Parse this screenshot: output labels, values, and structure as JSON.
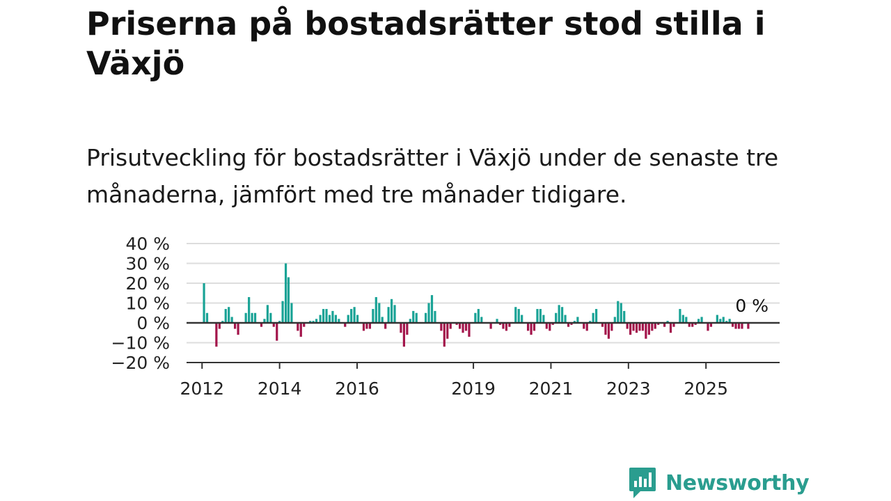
{
  "title": "Priserna på bostadsrätter stod stilla i Växjö",
  "subtitle": "Prisutveckling för bostadsrätter i Växjö under de senaste tre månaderna, jämfört med tre månader tidigare.",
  "brand": {
    "name": "Newsworthy",
    "color": "#2a9d8f"
  },
  "colors": {
    "positive": "#1aa396",
    "negative": "#a3154b",
    "grid": "#dddddd",
    "axis": "#333333"
  },
  "chart_data": {
    "type": "bar",
    "title": "",
    "xlabel": "",
    "ylabel": "",
    "ylim": [
      -20,
      40
    ],
    "y_ticks": [
      40,
      30,
      20,
      10,
      0,
      -10,
      -20
    ],
    "y_tick_labels": [
      "40 %",
      "30 %",
      "20 %",
      "10 %",
      "0 %",
      "−10 %",
      "−20 %"
    ],
    "x_ticks": [
      2012,
      2014,
      2016,
      2019,
      2021,
      2023,
      2025
    ],
    "x_tick_labels": [
      "2012",
      "2014",
      "2016",
      "2019",
      "2021",
      "2023",
      "2025"
    ],
    "x_range": [
      2011.6,
      2026.9
    ],
    "end_label": "0 %",
    "grid": true,
    "series": [
      {
        "values": [
          {
            "x": 2012.05,
            "y": 20
          },
          {
            "x": 2012.13,
            "y": 5
          },
          {
            "x": 2012.21,
            "y": 0
          },
          {
            "x": 2012.29,
            "y": 0
          },
          {
            "x": 2012.37,
            "y": -12
          },
          {
            "x": 2012.45,
            "y": -3
          },
          {
            "x": 2012.53,
            "y": 1
          },
          {
            "x": 2012.61,
            "y": 7
          },
          {
            "x": 2012.69,
            "y": 8
          },
          {
            "x": 2012.77,
            "y": 3
          },
          {
            "x": 2012.85,
            "y": -3
          },
          {
            "x": 2012.93,
            "y": -6
          },
          {
            "x": 2013.05,
            "y": 0
          },
          {
            "x": 2013.13,
            "y": 5
          },
          {
            "x": 2013.21,
            "y": 13
          },
          {
            "x": 2013.29,
            "y": 5
          },
          {
            "x": 2013.37,
            "y": 5
          },
          {
            "x": 2013.45,
            "y": 0
          },
          {
            "x": 2013.53,
            "y": -2
          },
          {
            "x": 2013.61,
            "y": 2
          },
          {
            "x": 2013.69,
            "y": 9
          },
          {
            "x": 2013.77,
            "y": 5
          },
          {
            "x": 2013.85,
            "y": -2
          },
          {
            "x": 2013.93,
            "y": -9
          },
          {
            "x": 2014.0,
            "y": 1
          },
          {
            "x": 2014.08,
            "y": 11
          },
          {
            "x": 2014.16,
            "y": 30
          },
          {
            "x": 2014.23,
            "y": 23
          },
          {
            "x": 2014.31,
            "y": 10
          },
          {
            "x": 2014.39,
            "y": 0
          },
          {
            "x": 2014.47,
            "y": -4
          },
          {
            "x": 2014.55,
            "y": -7
          },
          {
            "x": 2014.63,
            "y": -2
          },
          {
            "x": 2014.71,
            "y": 0
          },
          {
            "x": 2014.79,
            "y": 1
          },
          {
            "x": 2014.87,
            "y": 1
          },
          {
            "x": 2014.95,
            "y": 2
          },
          {
            "x": 2015.05,
            "y": 4
          },
          {
            "x": 2015.13,
            "y": 7
          },
          {
            "x": 2015.21,
            "y": 7
          },
          {
            "x": 2015.29,
            "y": 4
          },
          {
            "x": 2015.37,
            "y": 6
          },
          {
            "x": 2015.45,
            "y": 4
          },
          {
            "x": 2015.53,
            "y": 2
          },
          {
            "x": 2015.61,
            "y": 0
          },
          {
            "x": 2015.69,
            "y": -2
          },
          {
            "x": 2015.77,
            "y": 4
          },
          {
            "x": 2015.85,
            "y": 7
          },
          {
            "x": 2015.93,
            "y": 8
          },
          {
            "x": 2016.01,
            "y": 4
          },
          {
            "x": 2016.09,
            "y": 0
          },
          {
            "x": 2016.17,
            "y": -4
          },
          {
            "x": 2016.25,
            "y": -3
          },
          {
            "x": 2016.33,
            "y": -3
          },
          {
            "x": 2016.41,
            "y": 7
          },
          {
            "x": 2016.49,
            "y": 13
          },
          {
            "x": 2016.57,
            "y": 10
          },
          {
            "x": 2016.65,
            "y": 3
          },
          {
            "x": 2016.73,
            "y": -3
          },
          {
            "x": 2016.81,
            "y": 8
          },
          {
            "x": 2016.89,
            "y": 12
          },
          {
            "x": 2016.97,
            "y": 9
          },
          {
            "x": 2017.05,
            "y": 0
          },
          {
            "x": 2017.13,
            "y": -5
          },
          {
            "x": 2017.21,
            "y": -12
          },
          {
            "x": 2017.29,
            "y": -6
          },
          {
            "x": 2017.37,
            "y": 2
          },
          {
            "x": 2017.45,
            "y": 6
          },
          {
            "x": 2017.53,
            "y": 5
          },
          {
            "x": 2017.61,
            "y": 0
          },
          {
            "x": 2017.69,
            "y": 0
          },
          {
            "x": 2017.77,
            "y": 5
          },
          {
            "x": 2017.85,
            "y": 10
          },
          {
            "x": 2017.93,
            "y": 14
          },
          {
            "x": 2018.01,
            "y": 6
          },
          {
            "x": 2018.09,
            "y": 0
          },
          {
            "x": 2018.17,
            "y": -4
          },
          {
            "x": 2018.25,
            "y": -12
          },
          {
            "x": 2018.33,
            "y": -8
          },
          {
            "x": 2018.41,
            "y": -3
          },
          {
            "x": 2018.49,
            "y": 0
          },
          {
            "x": 2018.57,
            "y": -1
          },
          {
            "x": 2018.65,
            "y": -3
          },
          {
            "x": 2018.73,
            "y": -5
          },
          {
            "x": 2018.81,
            "y": -4
          },
          {
            "x": 2018.89,
            "y": -7
          },
          {
            "x": 2018.97,
            "y": 0
          },
          {
            "x": 2019.05,
            "y": 5
          },
          {
            "x": 2019.13,
            "y": 7
          },
          {
            "x": 2019.21,
            "y": 3
          },
          {
            "x": 2019.29,
            "y": 0
          },
          {
            "x": 2019.37,
            "y": 0
          },
          {
            "x": 2019.45,
            "y": -3
          },
          {
            "x": 2019.53,
            "y": 0
          },
          {
            "x": 2019.61,
            "y": 2
          },
          {
            "x": 2019.69,
            "y": -1
          },
          {
            "x": 2019.77,
            "y": -3
          },
          {
            "x": 2019.85,
            "y": -4
          },
          {
            "x": 2019.93,
            "y": -2
          },
          {
            "x": 2020.01,
            "y": 0
          },
          {
            "x": 2020.09,
            "y": 8
          },
          {
            "x": 2020.17,
            "y": 7
          },
          {
            "x": 2020.25,
            "y": 4
          },
          {
            "x": 2020.33,
            "y": 0
          },
          {
            "x": 2020.41,
            "y": -4
          },
          {
            "x": 2020.49,
            "y": -6
          },
          {
            "x": 2020.57,
            "y": -4
          },
          {
            "x": 2020.65,
            "y": 7
          },
          {
            "x": 2020.73,
            "y": 7
          },
          {
            "x": 2020.81,
            "y": 4
          },
          {
            "x": 2020.89,
            "y": -3
          },
          {
            "x": 2020.97,
            "y": -4
          },
          {
            "x": 2021.05,
            "y": -1
          },
          {
            "x": 2021.13,
            "y": 5
          },
          {
            "x": 2021.21,
            "y": 9
          },
          {
            "x": 2021.29,
            "y": 8
          },
          {
            "x": 2021.37,
            "y": 4
          },
          {
            "x": 2021.45,
            "y": -2
          },
          {
            "x": 2021.53,
            "y": -1
          },
          {
            "x": 2021.61,
            "y": 1
          },
          {
            "x": 2021.69,
            "y": 3
          },
          {
            "x": 2021.77,
            "y": 0
          },
          {
            "x": 2021.85,
            "y": -3
          },
          {
            "x": 2021.93,
            "y": -4
          },
          {
            "x": 2022.01,
            "y": 1
          },
          {
            "x": 2022.09,
            "y": 5
          },
          {
            "x": 2022.17,
            "y": 7
          },
          {
            "x": 2022.25,
            "y": 0
          },
          {
            "x": 2022.33,
            "y": -2
          },
          {
            "x": 2022.41,
            "y": -6
          },
          {
            "x": 2022.49,
            "y": -8
          },
          {
            "x": 2022.57,
            "y": -4
          },
          {
            "x": 2022.65,
            "y": 3
          },
          {
            "x": 2022.73,
            "y": 11
          },
          {
            "x": 2022.81,
            "y": 10
          },
          {
            "x": 2022.89,
            "y": 6
          },
          {
            "x": 2022.97,
            "y": -3
          },
          {
            "x": 2023.05,
            "y": -6
          },
          {
            "x": 2023.13,
            "y": -4
          },
          {
            "x": 2023.21,
            "y": -5
          },
          {
            "x": 2023.29,
            "y": -4
          },
          {
            "x": 2023.37,
            "y": -4
          },
          {
            "x": 2023.45,
            "y": -8
          },
          {
            "x": 2023.53,
            "y": -6
          },
          {
            "x": 2023.61,
            "y": -4
          },
          {
            "x": 2023.69,
            "y": -3
          },
          {
            "x": 2023.77,
            "y": -1
          },
          {
            "x": 2023.85,
            "y": 0
          },
          {
            "x": 2023.93,
            "y": -2
          },
          {
            "x": 2024.01,
            "y": 1
          },
          {
            "x": 2024.09,
            "y": -5
          },
          {
            "x": 2024.17,
            "y": -2
          },
          {
            "x": 2024.25,
            "y": 0
          },
          {
            "x": 2024.33,
            "y": 7
          },
          {
            "x": 2024.41,
            "y": 4
          },
          {
            "x": 2024.49,
            "y": 3
          },
          {
            "x": 2024.57,
            "y": -2
          },
          {
            "x": 2024.65,
            "y": -2
          },
          {
            "x": 2024.73,
            "y": -1
          },
          {
            "x": 2024.81,
            "y": 2
          },
          {
            "x": 2024.89,
            "y": 3
          },
          {
            "x": 2024.97,
            "y": 0
          },
          {
            "x": 2025.05,
            "y": -4
          },
          {
            "x": 2025.13,
            "y": -2
          },
          {
            "x": 2025.21,
            "y": 0
          },
          {
            "x": 2025.29,
            "y": 4
          },
          {
            "x": 2025.37,
            "y": 2
          },
          {
            "x": 2025.45,
            "y": 3
          },
          {
            "x": 2025.53,
            "y": 1
          },
          {
            "x": 2025.61,
            "y": 2
          },
          {
            "x": 2025.69,
            "y": -2
          },
          {
            "x": 2025.77,
            "y": -3
          },
          {
            "x": 2025.85,
            "y": -3
          },
          {
            "x": 2025.93,
            "y": -3
          },
          {
            "x": 2026.01,
            "y": 0
          },
          {
            "x": 2026.09,
            "y": -3
          },
          {
            "x": 2026.17,
            "y": 0
          }
        ]
      }
    ]
  }
}
